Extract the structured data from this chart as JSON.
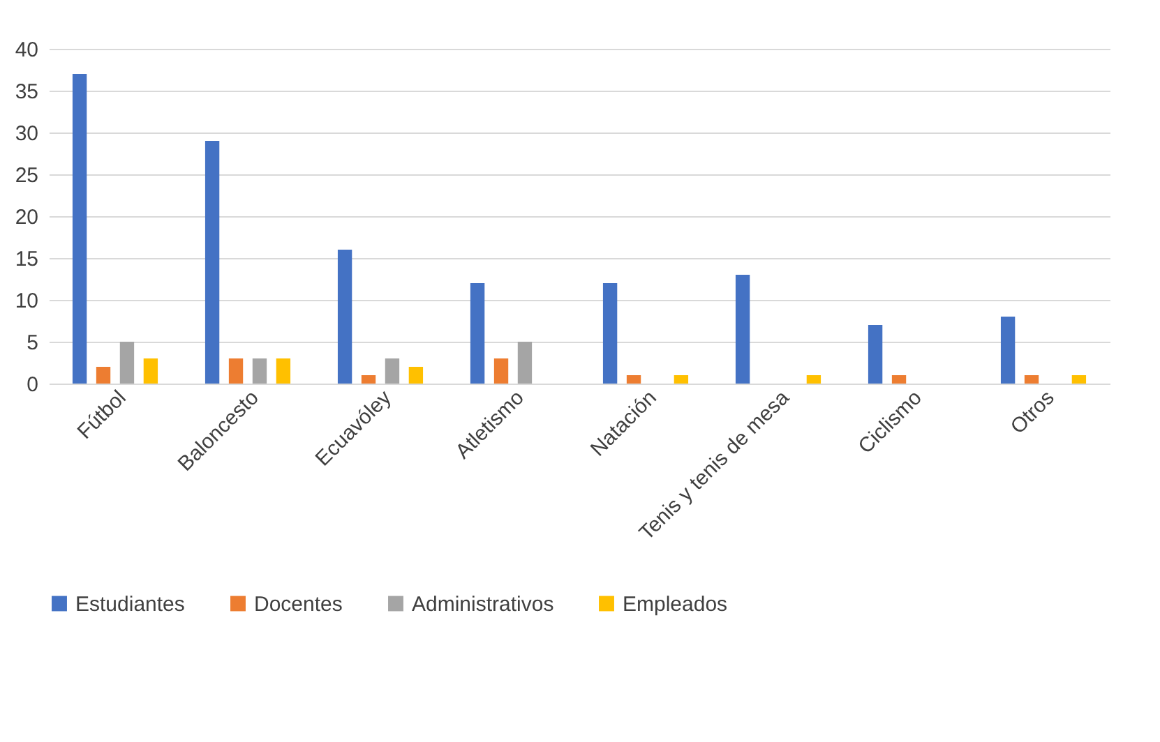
{
  "chart_data": {
    "type": "bar",
    "categories": [
      "Fútbol",
      "Baloncesto",
      "Ecuavóley",
      "Atletismo",
      "Natación",
      "Tenis y tenis de mesa",
      "Ciclismo",
      "Otros"
    ],
    "series": [
      {
        "name": "Estudiantes",
        "color": "#4472c4",
        "values": [
          37,
          29,
          16,
          12,
          12,
          13,
          7,
          8
        ]
      },
      {
        "name": "Docentes",
        "color": "#ed7d31",
        "values": [
          2,
          3,
          1,
          3,
          1,
          null,
          1,
          1
        ]
      },
      {
        "name": "Administrativos",
        "color": "#a5a5a5",
        "values": [
          5,
          3,
          3,
          5,
          null,
          null,
          null,
          null
        ]
      },
      {
        "name": "Empleados",
        "color": "#ffc000",
        "values": [
          3,
          3,
          2,
          null,
          1,
          1,
          null,
          1
        ]
      }
    ],
    "ylim": [
      0,
      40
    ],
    "yticks": [
      0,
      5,
      10,
      15,
      20,
      25,
      30,
      35,
      40
    ],
    "grid": "y",
    "legend": "bottom"
  }
}
